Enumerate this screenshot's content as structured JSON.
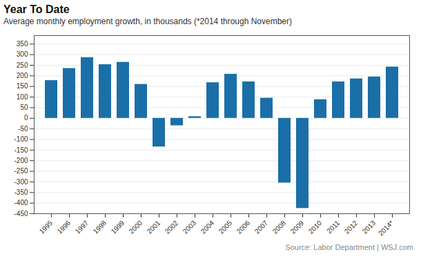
{
  "chart_data": {
    "type": "bar",
    "title": "Year To Date",
    "subtitle": "Average monthly employment growth, in thousands (*2014 through November)",
    "source": "Source: Labor Department  |  WSJ.com",
    "categories": [
      "1995",
      "1996",
      "1997",
      "1998",
      "1999",
      "2000",
      "2001",
      "2002",
      "2003",
      "2004",
      "2005",
      "2006",
      "2007",
      "2008",
      "2009",
      "2010",
      "2011",
      "2012",
      "2013",
      "2014*"
    ],
    "values": [
      178,
      235,
      286,
      253,
      264,
      160,
      -135,
      -35,
      8,
      168,
      208,
      172,
      95,
      -305,
      -425,
      88,
      172,
      186,
      195,
      242
    ],
    "color": "#1a6fa8",
    "ylim": [
      -450,
      390
    ],
    "yticks": [
      -450,
      -400,
      -350,
      -300,
      -250,
      -200,
      -150,
      -100,
      -50,
      0,
      50,
      100,
      150,
      200,
      250,
      300,
      350
    ],
    "grid": true
  }
}
